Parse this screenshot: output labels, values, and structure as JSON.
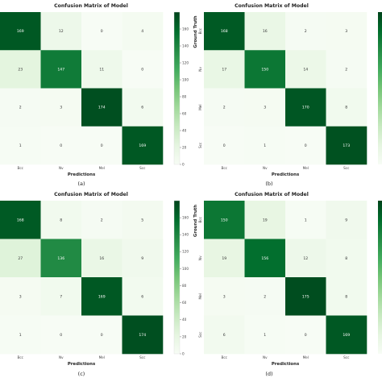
{
  "chart_data": [
    {
      "type": "heatmap",
      "panel_label": "(a)",
      "title": "Confusion Matrix of Model",
      "xlabel": "Predictions",
      "ylabel": "",
      "x_categories": [
        "Bcc",
        "Nv",
        "Mel",
        "Scc"
      ],
      "y_categories": [
        "",
        "",
        "",
        ""
      ],
      "matrix": [
        [
          169,
          12,
          0,
          4
        ],
        [
          23,
          147,
          11,
          0
        ],
        [
          2,
          3,
          174,
          6
        ],
        [
          1,
          0,
          0,
          169
        ]
      ],
      "colorbar": {
        "ticks": [
          0,
          20,
          40,
          60,
          80,
          100,
          120,
          140,
          160
        ],
        "vmin": 0,
        "vmax": 180
      },
      "colorscale": [
        "#f7fcf5",
        "#00441b"
      ]
    },
    {
      "type": "heatmap",
      "panel_label": "(b)",
      "title": "Confusion Matrix of Model",
      "xlabel": "Predictions",
      "ylabel": "Ground Truth",
      "x_categories": [
        "Bcc",
        "Nv",
        "Mel",
        "Scc"
      ],
      "y_categories": [
        "Bcc",
        "Nv",
        "Mel",
        "Scc"
      ],
      "matrix": [
        [
          168,
          16,
          2,
          3
        ],
        [
          17,
          150,
          14,
          2
        ],
        [
          2,
          3,
          170,
          8
        ],
        [
          0,
          1,
          0,
          173
        ]
      ],
      "colorbar": null,
      "colorscale": [
        "#f7fcf5",
        "#00441b"
      ]
    },
    {
      "type": "heatmap",
      "panel_label": "(c)",
      "title": "Confusion Matrix of Model",
      "xlabel": "Predictions",
      "ylabel": "",
      "x_categories": [
        "Bcc",
        "Nv",
        "Mel",
        "Scc"
      ],
      "y_categories": [
        "",
        "",
        "",
        ""
      ],
      "matrix": [
        [
          168,
          8,
          2,
          5
        ],
        [
          27,
          136,
          16,
          9
        ],
        [
          3,
          7,
          169,
          6
        ],
        [
          1,
          0,
          0,
          174
        ]
      ],
      "colorbar": {
        "ticks": [
          0,
          20,
          40,
          60,
          80,
          100,
          120,
          140,
          160
        ],
        "vmin": 0,
        "vmax": 180
      },
      "colorscale": [
        "#f7fcf5",
        "#00441b"
      ]
    },
    {
      "type": "heatmap",
      "panel_label": "(d)",
      "title": "Confusion Matrix of Model",
      "xlabel": "Predictions",
      "ylabel": "Ground Truth",
      "x_categories": [
        "Bcc",
        "Nv",
        "Mel",
        "Scc"
      ],
      "y_categories": [
        "Bcc",
        "Nv",
        "Mel",
        "Scc"
      ],
      "matrix": [
        [
          150,
          19,
          1,
          9
        ],
        [
          19,
          156,
          12,
          8
        ],
        [
          3,
          2,
          175,
          8
        ],
        [
          6,
          1,
          0,
          169
        ]
      ],
      "colorbar": null,
      "colorscale": [
        "#f7fcf5",
        "#00441b"
      ]
    }
  ]
}
